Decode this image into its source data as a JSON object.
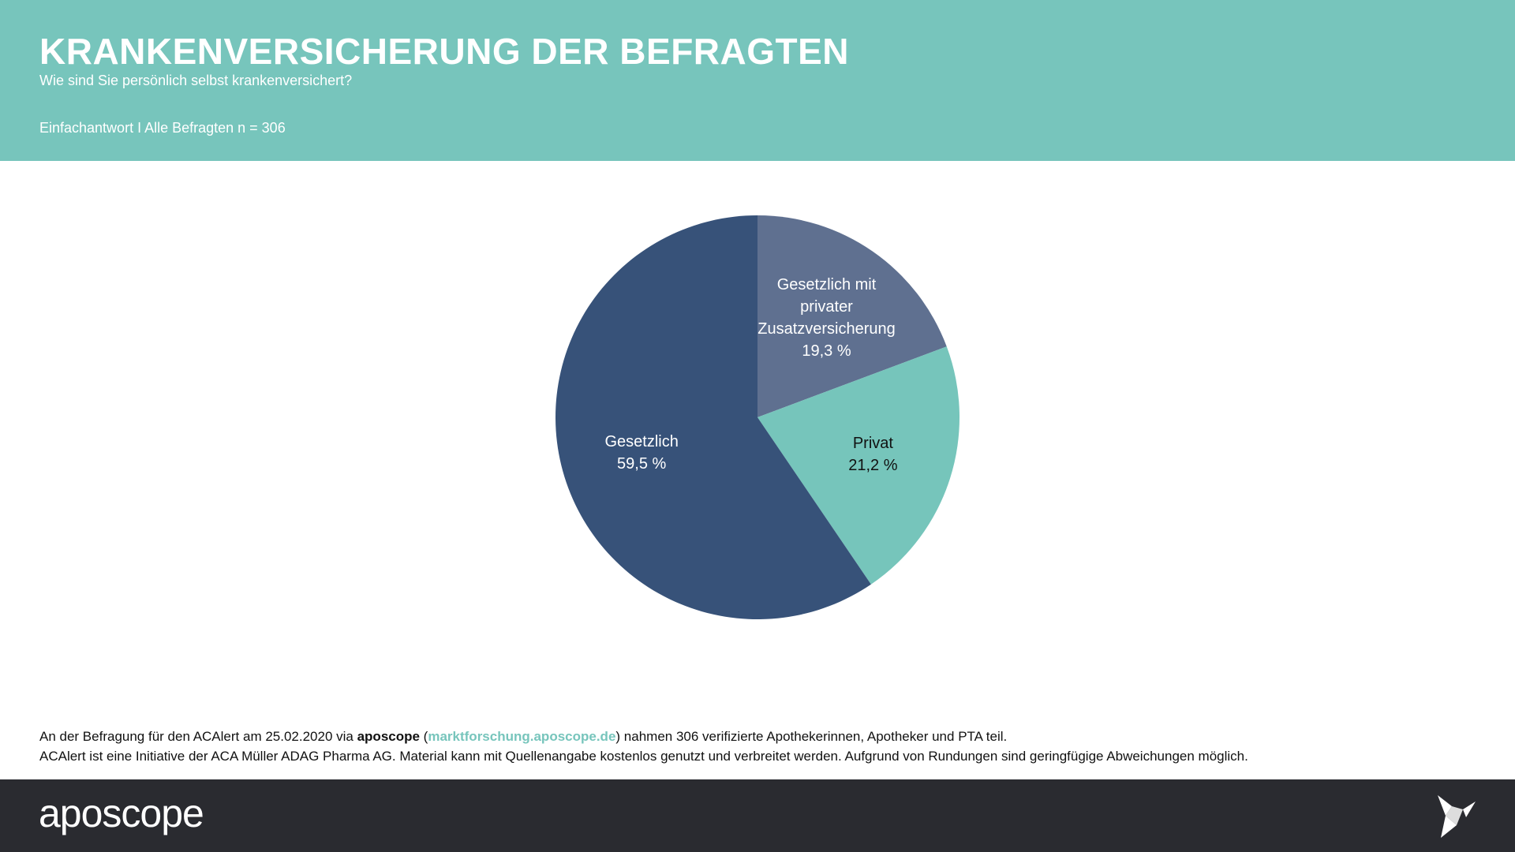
{
  "chart_data": {
    "type": "pie",
    "title": "KRANKENVERSICHERUNG DER BEFRAGTEN",
    "subtitle": "Wie sind Sie persönlich selbst krankenversichert?",
    "note": "Einfachantwort I Alle Befragten n = 306",
    "categories": [
      "Gesetzlich mit privater Zusatzversicherung",
      "Privat",
      "Gesetzlich"
    ],
    "values": [
      19.3,
      21.2,
      59.5
    ],
    "value_labels": [
      "19,3 %",
      "21,2 %",
      "59,5 %"
    ],
    "colors": [
      "#5f7090",
      "#76c5bb",
      "#375279"
    ]
  },
  "footer": {
    "line1": [
      "An der Befragung für den ACAlert am 25.02.2020 via ",
      "aposcope",
      " (",
      "marktforschung.aposcope.de",
      ") nahmen 306 verifizierte Apothekerinnen, Apotheker und PTA teil."
    ],
    "line2": "ACAlert ist eine Initiative der ACA Müller ADAG Pharma AG. Material kann mit Quellenangabe kostenlos genutzt und verbreitet werden. Aufgrund von Rundungen sind geringfügige Abweichungen möglich.",
    "logo": "aposcope"
  }
}
